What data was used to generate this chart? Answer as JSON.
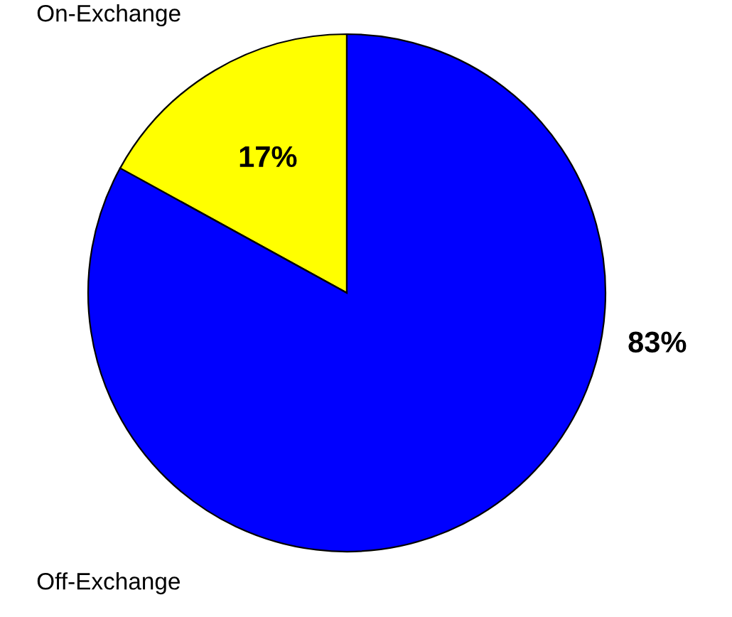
{
  "chart_data": {
    "type": "pie",
    "categories": [
      "On-Exchange",
      "Off-Exchange"
    ],
    "values": [
      17,
      83
    ],
    "value_labels": [
      "17%",
      "83%"
    ],
    "colors": [
      "#ffff00",
      "#0000ff"
    ]
  }
}
